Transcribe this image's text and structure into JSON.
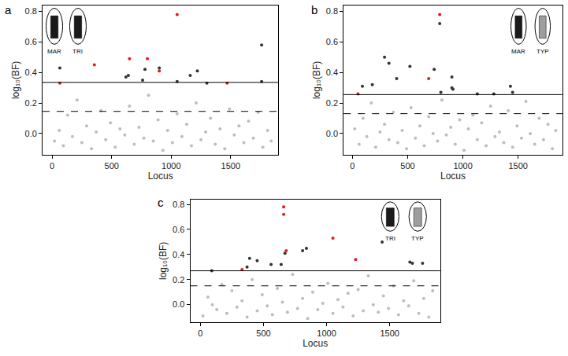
{
  "chart_data": [
    {
      "type": "scatter",
      "panel": "a",
      "xlabel": "Locus",
      "ylabel": "log₁₀(BF)",
      "icons": [
        {
          "label": "MAR",
          "color": "#1a1a1a"
        },
        {
          "label": "TRI",
          "color": "#1a1a1a"
        }
      ],
      "xlim": [
        -80,
        1900
      ],
      "xticks": [
        0,
        500,
        1000,
        1500
      ],
      "ylim": [
        -0.14,
        0.84
      ],
      "yticks": [
        {
          "value": 0,
          "label": "0.0"
        },
        {
          "value": 0.2,
          "label": "0.2"
        },
        {
          "value": 0.4,
          "label": "0.4"
        },
        {
          "value": 0.6,
          "label": "0.6"
        },
        {
          "value": 0.8,
          "label": "0.8"
        }
      ],
      "thresholds": [
        {
          "value": 0.335,
          "line_style": "solid"
        },
        {
          "value": 0.145,
          "line_style": "dashed"
        }
      ],
      "series": [
        {
          "color": "#bdbdbd",
          "marker": "circle",
          "x": [
            20,
            60,
            95,
            130,
            170,
            210,
            250,
            290,
            330,
            370,
            410,
            450,
            490,
            530,
            570,
            610,
            650,
            690,
            730,
            770,
            810,
            850,
            890,
            930,
            970,
            1010,
            1050,
            1090,
            1130,
            1170,
            1210,
            1250,
            1290,
            1330,
            1370,
            1410,
            1450,
            1490,
            1530,
            1570,
            1610,
            1650,
            1690,
            1730,
            1770,
            1810,
            1840
          ],
          "values": [
            -0.05,
            0.02,
            -0.08,
            0.12,
            -0.02,
            0.22,
            -0.06,
            0.05,
            -0.1,
            0.01,
            0.15,
            -0.04,
            0.07,
            -0.09,
            0.03,
            -0.01,
            0.18,
            -0.07,
            0.04,
            -0.03,
            0.25,
            -0.05,
            0.09,
            -0.11,
            0.02,
            -0.06,
            0.13,
            -0.02,
            0.06,
            -0.08,
            0.2,
            -0.04,
            0.01,
            0.1,
            -0.07,
            0.03,
            -0.1,
            0.16,
            -0.01,
            0.05,
            -0.06,
            0.08,
            -0.03,
            0.14,
            -0.09,
            0.02,
            -0.05
          ]
        },
        {
          "color": "#333333",
          "marker": "circle",
          "x": [
            65,
            620,
            640,
            760,
            780,
            900,
            1050,
            1160,
            1220,
            1300,
            1760,
            1760
          ],
          "values": [
            0.43,
            0.37,
            0.38,
            0.35,
            0.42,
            0.43,
            0.34,
            0.38,
            0.41,
            0.33,
            0.58,
            0.34
          ]
        },
        {
          "color": "#e31a1c",
          "marker": "circle",
          "x": [
            65,
            355,
            650,
            800,
            900,
            1050,
            1470
          ],
          "values": [
            0.33,
            0.45,
            0.49,
            0.49,
            0.41,
            0.78,
            0.33
          ]
        }
      ]
    },
    {
      "type": "scatter",
      "panel": "b",
      "xlabel": "Locus",
      "ylabel": "log₁₀(BF)",
      "icons": [
        {
          "label": "MAR",
          "color": "#1a1a1a"
        },
        {
          "label": "TYP",
          "color": "#9e9e9e"
        }
      ],
      "xlim": [
        -80,
        1900
      ],
      "xticks": [
        0,
        500,
        1000,
        1500
      ],
      "ylim": [
        -0.14,
        0.84
      ],
      "yticks": [
        {
          "value": 0,
          "label": "0.0"
        },
        {
          "value": 0.2,
          "label": "0.2"
        },
        {
          "value": 0.4,
          "label": "0.4"
        },
        {
          "value": 0.6,
          "label": "0.6"
        },
        {
          "value": 0.8,
          "label": "0.8"
        }
      ],
      "thresholds": [
        {
          "value": 0.255,
          "line_style": "solid"
        },
        {
          "value": 0.13,
          "line_style": "dashed"
        }
      ],
      "series": [
        {
          "color": "#bdbdbd",
          "marker": "circle",
          "x": [
            20,
            60,
            95,
            130,
            170,
            210,
            250,
            290,
            330,
            370,
            410,
            450,
            490,
            530,
            570,
            610,
            650,
            690,
            730,
            770,
            810,
            850,
            890,
            930,
            970,
            1010,
            1050,
            1090,
            1130,
            1170,
            1210,
            1250,
            1290,
            1330,
            1370,
            1410,
            1450,
            1490,
            1530,
            1570,
            1610,
            1650,
            1690,
            1730,
            1770,
            1810,
            1840
          ],
          "values": [
            0.03,
            -0.07,
            0.1,
            -0.02,
            0.2,
            -0.09,
            0.01,
            0.06,
            -0.04,
            0.14,
            -0.06,
            0.02,
            -0.1,
            0.17,
            -0.03,
            0.05,
            -0.08,
            0.11,
            0.0,
            -0.05,
            0.22,
            -0.01,
            0.04,
            -0.07,
            0.09,
            -0.11,
            0.03,
            0.12,
            -0.04,
            0.07,
            -0.08,
            0.18,
            -0.02,
            0.01,
            -0.06,
            0.15,
            -0.09,
            0.05,
            -0.03,
            0.21,
            0.0,
            -0.07,
            0.1,
            -0.04,
            0.06,
            -0.1,
            0.02
          ]
        },
        {
          "color": "#333333",
          "marker": "circle",
          "x": [
            790,
            90,
            180,
            290,
            330,
            400,
            520,
            740,
            800,
            900,
            900,
            910,
            1130,
            1280,
            1430,
            1450
          ],
          "values": [
            0.72,
            0.31,
            0.32,
            0.5,
            0.46,
            0.36,
            0.44,
            0.42,
            0.27,
            0.37,
            0.3,
            0.29,
            0.26,
            0.26,
            0.31,
            0.27
          ]
        },
        {
          "color": "#e31a1c",
          "marker": "circle",
          "x": [
            50,
            690,
            790
          ],
          "values": [
            0.26,
            0.36,
            0.78
          ]
        }
      ]
    },
    {
      "type": "scatter",
      "panel": "c",
      "xlabel": "Locus",
      "ylabel": "log₁₀(BF)",
      "icons": [
        {
          "label": "TRI",
          "color": "#1a1a1a"
        },
        {
          "label": "TYP",
          "color": "#9e9e9e"
        }
      ],
      "xlim": [
        -80,
        1900
      ],
      "xticks": [
        0,
        500,
        1000,
        1500
      ],
      "ylim": [
        -0.14,
        0.84
      ],
      "yticks": [
        {
          "value": 0,
          "label": "0.0"
        },
        {
          "value": 0.2,
          "label": "0.2"
        },
        {
          "value": 0.4,
          "label": "0.4"
        },
        {
          "value": 0.6,
          "label": "0.6"
        },
        {
          "value": 0.8,
          "label": "0.8"
        }
      ],
      "thresholds": [
        {
          "value": 0.27,
          "line_style": "solid"
        },
        {
          "value": 0.15,
          "line_style": "dashed"
        }
      ],
      "series": [
        {
          "color": "#bdbdbd",
          "marker": "circle",
          "x": [
            20,
            60,
            95,
            130,
            170,
            210,
            250,
            290,
            330,
            370,
            410,
            450,
            490,
            530,
            570,
            610,
            650,
            690,
            730,
            770,
            810,
            850,
            890,
            930,
            970,
            1010,
            1050,
            1090,
            1130,
            1170,
            1210,
            1250,
            1290,
            1330,
            1370,
            1410,
            1450,
            1490,
            1530,
            1570,
            1610,
            1650,
            1690,
            1730,
            1770,
            1810,
            1840
          ],
          "values": [
            -0.09,
            0.06,
            0.0,
            -0.04,
            0.16,
            -0.07,
            0.11,
            -0.02,
            0.03,
            -0.1,
            0.2,
            -0.05,
            0.08,
            -0.01,
            -0.08,
            0.13,
            0.02,
            -0.06,
            0.24,
            -0.03,
            0.05,
            -0.11,
            0.1,
            -0.04,
            0.01,
            0.17,
            -0.07,
            0.04,
            -0.02,
            0.09,
            -0.09,
            0.12,
            -0.05,
            0.23,
            0.0,
            -0.06,
            0.07,
            -0.03,
            0.15,
            -0.08,
            0.03,
            -0.01,
            0.19,
            -0.07,
            0.05,
            -0.1,
            0.11
          ]
        },
        {
          "color": "#333333",
          "marker": "circle",
          "x": [
            90,
            370,
            390,
            450,
            560,
            640,
            670,
            810,
            840,
            1440,
            1660,
            1680,
            1760
          ],
          "values": [
            0.27,
            0.3,
            0.37,
            0.35,
            0.32,
            0.32,
            0.41,
            0.43,
            0.45,
            0.5,
            0.34,
            0.33,
            0.33
          ]
        },
        {
          "color": "#e31a1c",
          "marker": "circle",
          "x": [
            330,
            660,
            660,
            680,
            1050,
            1230
          ],
          "values": [
            0.28,
            0.78,
            0.72,
            0.43,
            0.53,
            0.36
          ]
        }
      ]
    }
  ]
}
